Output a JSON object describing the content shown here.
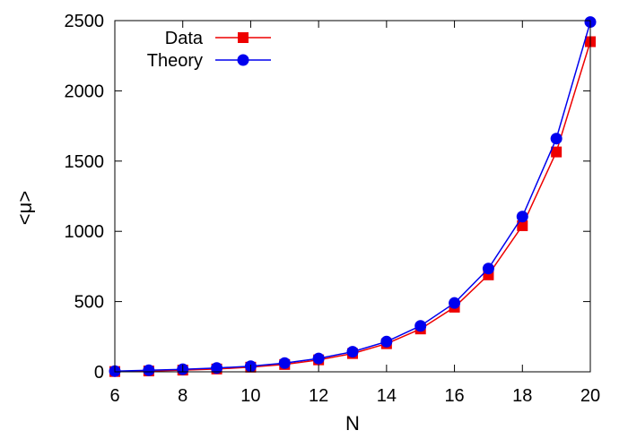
{
  "chart_data": {
    "type": "line",
    "xlabel": "N",
    "ylabel": "<μ>",
    "xlim": [
      6,
      20
    ],
    "ylim": [
      0,
      2500
    ],
    "x_ticks": [
      "6",
      "8",
      "10",
      "12",
      "14",
      "16",
      "18",
      "20"
    ],
    "y_ticks": [
      "0",
      "500",
      "1000",
      "1500",
      "2000",
      "2500"
    ],
    "legend_position": "top-left",
    "grid": false,
    "x": [
      6,
      7,
      8,
      9,
      10,
      11,
      12,
      13,
      14,
      15,
      16,
      17,
      18,
      19,
      20
    ],
    "series": [
      {
        "name": "Data",
        "color": "#ee0000",
        "marker": "square",
        "values": [
          2,
          6,
          12,
          20,
          33,
          52,
          85,
          130,
          200,
          305,
          460,
          690,
          1040,
          1565,
          2350
        ]
      },
      {
        "name": "Theory",
        "color": "#0000ee",
        "marker": "circle",
        "values": [
          5,
          11,
          18,
          27,
          40,
          62,
          95,
          143,
          215,
          327,
          490,
          735,
          1105,
          1660,
          2490
        ]
      }
    ]
  }
}
